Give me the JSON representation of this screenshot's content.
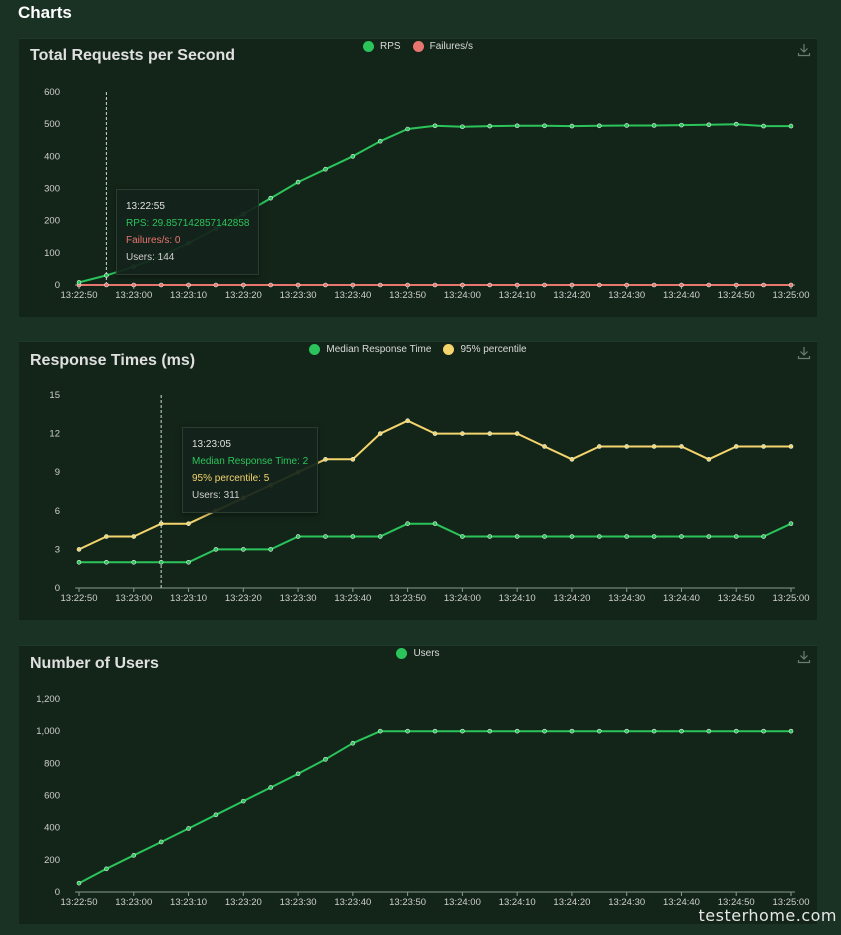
{
  "page": {
    "heading": "Charts",
    "watermark": "testerhome.com"
  },
  "colors": {
    "rps": "#2bc45b",
    "failures": "#e8766f",
    "median": "#2bc45b",
    "p95": "#f4d46c",
    "users": "#2bc45b",
    "axis_text": "#cfcfcf",
    "grid": "#23402e"
  },
  "panels": [
    {
      "title": "Total Requests per Second",
      "legend": [
        {
          "label": "RPS",
          "color": "#2bc45b"
        },
        {
          "label": "Failures/s",
          "color": "#e8766f"
        }
      ],
      "tooltip": {
        "time": "13:22:55",
        "lines": [
          {
            "text": "RPS: 29.857142857142858",
            "color": "#2bc45b"
          },
          {
            "text": "Failures/s: 0",
            "color": "#e8766f"
          },
          {
            "text": "Users: 144",
            "color": "#cfcfcf"
          }
        ]
      }
    },
    {
      "title": "Response Times (ms)",
      "legend": [
        {
          "label": "Median Response Time",
          "color": "#2bc45b"
        },
        {
          "label": "95% percentile",
          "color": "#f4d46c"
        }
      ],
      "tooltip": {
        "time": "13:23:05",
        "lines": [
          {
            "text": "Median Response Time: 2",
            "color": "#2bc45b"
          },
          {
            "text": "95% percentile: 5",
            "color": "#f4d46c"
          },
          {
            "text": "Users: 311",
            "color": "#cfcfcf"
          }
        ]
      }
    },
    {
      "title": "Number of Users",
      "legend": [
        {
          "label": "Users",
          "color": "#2bc45b"
        }
      ]
    }
  ],
  "chart_data": [
    {
      "type": "line",
      "title": "Total Requests per Second",
      "x": [
        "13:22:50",
        "13:22:55",
        "13:23:00",
        "13:23:05",
        "13:23:10",
        "13:23:15",
        "13:23:20",
        "13:23:25",
        "13:23:30",
        "13:23:35",
        "13:23:40",
        "13:23:45",
        "13:23:50",
        "13:23:55",
        "13:24:00",
        "13:24:05",
        "13:24:10",
        "13:24:15",
        "13:24:20",
        "13:24:25",
        "13:24:30",
        "13:24:35",
        "13:24:40",
        "13:24:45",
        "13:24:50",
        "13:24:55",
        "13:25:00"
      ],
      "xticks": [
        "13:22:50",
        "13:23:00",
        "13:23:10",
        "13:23:20",
        "13:23:30",
        "13:23:40",
        "13:23:50",
        "13:24:00",
        "13:24:10",
        "13:24:20",
        "13:24:30",
        "13:24:40",
        "13:24:50",
        "13:25:00"
      ],
      "yticks": [
        "0",
        "100",
        "200",
        "300",
        "400",
        "500",
        "600"
      ],
      "ylim": [
        0,
        600
      ],
      "series": [
        {
          "name": "RPS",
          "color": "#2bc45b",
          "values": [
            8,
            29.857142857142858,
            57,
            90,
            130,
            175,
            220,
            270,
            320,
            360,
            400,
            447,
            485,
            495,
            492,
            494,
            495,
            495,
            494,
            495,
            496,
            496,
            497,
            498,
            500,
            494,
            494
          ]
        },
        {
          "name": "Failures/s",
          "color": "#e8766f",
          "values": [
            0,
            0,
            0,
            0,
            0,
            0,
            0,
            0,
            0,
            0,
            0,
            0,
            0,
            0,
            0,
            0,
            0,
            0,
            0,
            0,
            0,
            0,
            0,
            0,
            0,
            0,
            0
          ]
        }
      ],
      "hover_index": 1
    },
    {
      "type": "line",
      "title": "Response Times (ms)",
      "x": [
        "13:22:50",
        "13:22:55",
        "13:23:00",
        "13:23:05",
        "13:23:10",
        "13:23:15",
        "13:23:20",
        "13:23:25",
        "13:23:30",
        "13:23:35",
        "13:23:40",
        "13:23:45",
        "13:23:50",
        "13:23:55",
        "13:24:00",
        "13:24:05",
        "13:24:10",
        "13:24:15",
        "13:24:20",
        "13:24:25",
        "13:24:30",
        "13:24:35",
        "13:24:40",
        "13:24:45",
        "13:24:50",
        "13:24:55",
        "13:25:00"
      ],
      "xticks": [
        "13:22:50",
        "13:23:00",
        "13:23:10",
        "13:23:20",
        "13:23:30",
        "13:23:40",
        "13:23:50",
        "13:24:00",
        "13:24:10",
        "13:24:20",
        "13:24:30",
        "13:24:40",
        "13:24:50",
        "13:25:00"
      ],
      "yticks": [
        "0",
        "3",
        "6",
        "9",
        "12",
        "15"
      ],
      "ylim": [
        0,
        15
      ],
      "series": [
        {
          "name": "Median Response Time",
          "color": "#2bc45b",
          "values": [
            2,
            2,
            2,
            2,
            2,
            3,
            3,
            3,
            4,
            4,
            4,
            4,
            5,
            5,
            4,
            4,
            4,
            4,
            4,
            4,
            4,
            4,
            4,
            4,
            4,
            4,
            5
          ]
        },
        {
          "name": "95% percentile",
          "color": "#f4d46c",
          "values": [
            3,
            4,
            4,
            5,
            5,
            6,
            7,
            8,
            9,
            10,
            10,
            12,
            13,
            12,
            12,
            12,
            12,
            11,
            10,
            11,
            11,
            11,
            11,
            10,
            11,
            11,
            11
          ]
        }
      ],
      "hover_index": 3
    },
    {
      "type": "line",
      "title": "Number of Users",
      "x": [
        "13:22:50",
        "13:22:55",
        "13:23:00",
        "13:23:05",
        "13:23:10",
        "13:23:15",
        "13:23:20",
        "13:23:25",
        "13:23:30",
        "13:23:35",
        "13:23:40",
        "13:23:45",
        "13:23:50",
        "13:23:55",
        "13:24:00",
        "13:24:05",
        "13:24:10",
        "13:24:15",
        "13:24:20",
        "13:24:25",
        "13:24:30",
        "13:24:35",
        "13:24:40",
        "13:24:45",
        "13:24:50",
        "13:24:55",
        "13:25:00"
      ],
      "xticks": [
        "13:22:50",
        "13:23:00",
        "13:23:10",
        "13:23:20",
        "13:23:30",
        "13:23:40",
        "13:23:50",
        "13:24:00",
        "13:24:10",
        "13:24:20",
        "13:24:30",
        "13:24:40",
        "13:24:50",
        "13:25:00"
      ],
      "yticks": [
        "0",
        "200",
        "400",
        "600",
        "800",
        "1,000",
        "1,200"
      ],
      "ylim": [
        0,
        1200
      ],
      "series": [
        {
          "name": "Users",
          "color": "#2bc45b",
          "values": [
            55,
            144,
            228,
            311,
            395,
            480,
            565,
            650,
            735,
            825,
            925,
            1000,
            1000,
            1000,
            1000,
            1000,
            1000,
            1000,
            1000,
            1000,
            1000,
            1000,
            1000,
            1000,
            1000,
            1000,
            1000
          ]
        }
      ]
    }
  ]
}
